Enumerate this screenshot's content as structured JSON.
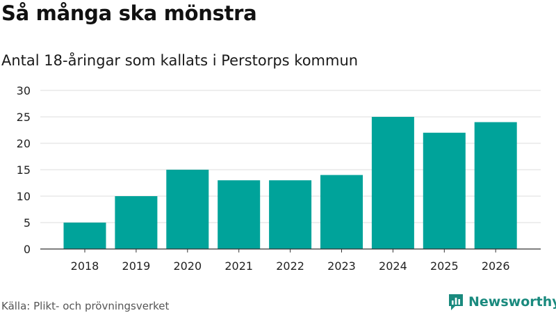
{
  "header": {
    "title": "Så många ska mönstra",
    "subtitle": "Antal 18-åringar som kallats i Perstorps kommun"
  },
  "footer": {
    "source": "Källa: Plikt- och prövningsverket",
    "brand": "Newsworthy",
    "brand_icon": "newsworthy-logo-icon"
  },
  "colors": {
    "bar": "#00a39a",
    "grid": "#dddddd",
    "axis": "#333333",
    "brand": "#1a8a7e"
  },
  "chart_data": {
    "type": "bar",
    "title": "Så många ska mönstra",
    "subtitle": "Antal 18-åringar som kallats i Perstorps kommun",
    "categories": [
      "2018",
      "2019",
      "2020",
      "2021",
      "2022",
      "2023",
      "2024",
      "2025",
      "2026"
    ],
    "values": [
      5,
      10,
      15,
      13,
      13,
      14,
      25,
      22,
      24
    ],
    "xlabel": "",
    "ylabel": "",
    "ylim": [
      0,
      30
    ],
    "yticks": [
      0,
      5,
      10,
      15,
      20,
      25,
      30
    ],
    "grid": true,
    "legend": "none"
  }
}
